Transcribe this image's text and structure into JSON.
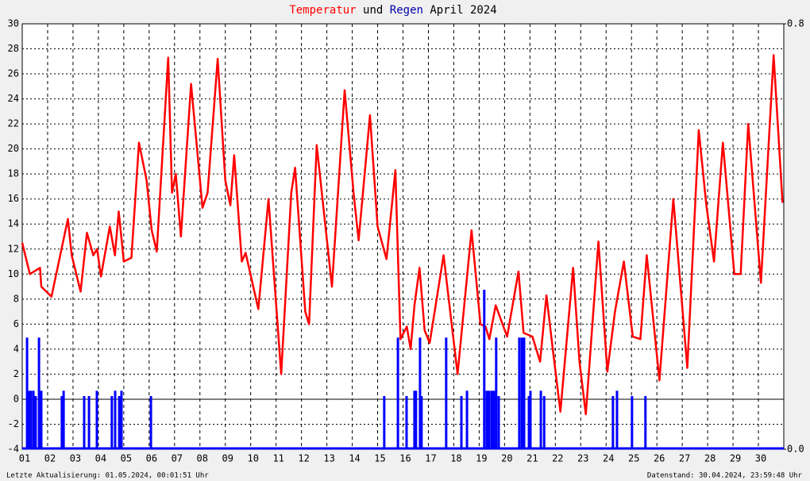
{
  "chart_data": {
    "type": "line",
    "title_connector": "und",
    "title": "April 2024",
    "left_note": "Letzte Aktualisierung: 01.05.2024, 00:01:51 Uhr",
    "right_note": "Datenstand: 30.04.2024, 23:59:48 Uhr",
    "grid": true,
    "xlim": [
      1,
      31
    ],
    "xticks": [
      {
        "value": 1,
        "label": "01"
      },
      {
        "value": 2,
        "label": "02"
      },
      {
        "value": 3,
        "label": "03"
      },
      {
        "value": 4,
        "label": "04"
      },
      {
        "value": 5,
        "label": "05"
      },
      {
        "value": 6,
        "label": "06"
      },
      {
        "value": 7,
        "label": "07"
      },
      {
        "value": 8,
        "label": "08"
      },
      {
        "value": 9,
        "label": "09"
      },
      10,
      11,
      12,
      13,
      14,
      15,
      16,
      17,
      18,
      19,
      20,
      21,
      22,
      23,
      24,
      25,
      26,
      27,
      28,
      29,
      30
    ],
    "ylim": [
      -4,
      30
    ],
    "yticks": [
      -4,
      -2,
      0,
      2,
      4,
      6,
      8,
      10,
      12,
      14,
      16,
      18,
      20,
      22,
      24,
      26,
      28,
      30
    ],
    "y2lim": [
      0,
      0.8
    ],
    "y2ticks": [
      0.8,
      {
        "value": 0,
        "label": "0.0"
      }
    ],
    "series": [
      {
        "name": "Temperatur",
        "type": "line",
        "color": "#ff0000",
        "x": [
          1.0,
          1.3,
          1.7,
          1.75,
          2.15,
          2.8,
          2.95,
          3.3,
          3.55,
          3.8,
          3.95,
          4.1,
          4.45,
          4.65,
          4.8,
          5.0,
          5.3,
          5.6,
          5.9,
          6.1,
          6.3,
          6.75,
          6.9,
          7.05,
          7.25,
          7.65,
          8.1,
          8.3,
          8.7,
          9.0,
          9.2,
          9.35,
          9.65,
          9.8,
          10.3,
          10.7,
          11.2,
          11.6,
          11.75,
          12.15,
          12.3,
          12.6,
          13.2,
          13.7,
          14.05,
          14.25,
          14.7,
          15.0,
          15.35,
          15.7,
          15.9,
          16.15,
          16.3,
          16.45,
          16.65,
          16.85,
          17.05,
          17.6,
          18.15,
          18.7,
          19.05,
          19.25,
          19.4,
          19.65,
          20.1,
          20.55,
          20.75,
          21.1,
          21.4,
          21.65,
          21.9,
          22.2,
          22.7,
          22.95,
          23.2,
          23.7,
          24.05,
          24.35,
          24.7,
          25.05,
          25.35,
          25.6,
          26.1,
          26.65,
          27.2,
          27.65,
          27.95,
          28.25,
          28.6,
          29.05,
          29.3,
          29.6,
          30.1,
          30.6,
          30.95
        ],
        "values": [
          12.5,
          10,
          10.5,
          9,
          8.2,
          14.4,
          11.5,
          8.6,
          13.3,
          11.5,
          12,
          9.8,
          13.8,
          11.5,
          15,
          11,
          11.3,
          20.5,
          17.5,
          13.5,
          11.8,
          27.3,
          16.5,
          18,
          13,
          25.2,
          15.3,
          16.5,
          27.2,
          17.5,
          15.5,
          19.5,
          11,
          11.7,
          7.2,
          16,
          2,
          16.5,
          18.5,
          7,
          6,
          20.3,
          9,
          24.7,
          16.5,
          12.7,
          22.7,
          13.8,
          11.2,
          18.3,
          4.8,
          5.8,
          4,
          7.5,
          10.5,
          5.5,
          4.5,
          11.5,
          2,
          13.5,
          6,
          5.8,
          4.8,
          7.5,
          5,
          10.2,
          5.3,
          5,
          3,
          8.3,
          4,
          -1,
          10.5,
          3,
          -1.2,
          12.6,
          2.2,
          7,
          11,
          5,
          4.8,
          11.5,
          1.5,
          16,
          2.5,
          21.5,
          15.5,
          11,
          20.5,
          10,
          10,
          22,
          9.3,
          27.5,
          15.7
        ]
      },
      {
        "name": "Regen",
        "type": "bar",
        "axis": "y2",
        "color": "#0000ff",
        "x": [
          1.19,
          1.25,
          1.34,
          1.44,
          1.53,
          1.66,
          1.75,
          2.56,
          2.63,
          3.44,
          3.63,
          3.94,
          4.53,
          4.66,
          4.82,
          4.91,
          6.07,
          15.26,
          15.8,
          16.14,
          16.45,
          16.51,
          16.67,
          16.73,
          17.7,
          18.3,
          18.52,
          19.2,
          19.3,
          19.39,
          19.49,
          19.58,
          19.67,
          19.77,
          20.58,
          20.68,
          20.77,
          20.96,
          21.02,
          21.43,
          21.56,
          24.27,
          24.43,
          25.02,
          25.55
        ],
        "values": [
          0.21,
          0.11,
          0.11,
          0.11,
          0.1,
          0.21,
          0.11,
          0.1,
          0.11,
          0.1,
          0.1,
          0.11,
          0.1,
          0.11,
          0.1,
          0.11,
          0.1,
          0.1,
          0.21,
          0.1,
          0.11,
          0.11,
          0.21,
          0.1,
          0.21,
          0.1,
          0.11,
          0.3,
          0.11,
          0.11,
          0.11,
          0.11,
          0.21,
          0.1,
          0.21,
          0.21,
          0.21,
          0.1,
          0.11,
          0.11,
          0.1,
          0.1,
          0.11,
          0.1,
          0.1
        ]
      }
    ]
  }
}
